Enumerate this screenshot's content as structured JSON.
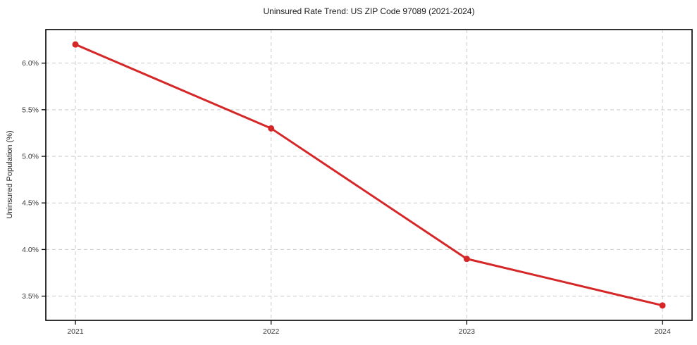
{
  "chart_data": {
    "type": "line",
    "title": "Uninsured Rate Trend: US ZIP Code 97089 (2021-2024)",
    "xlabel": "",
    "ylabel": "Uninsured Population (%)",
    "categories": [
      "2021",
      "2022",
      "2023",
      "2024"
    ],
    "series": [
      {
        "name": "Uninsured Rate",
        "values": [
          6.2,
          5.3,
          3.9,
          3.4
        ]
      }
    ],
    "yticks": [
      3.5,
      4.0,
      4.5,
      5.0,
      5.5,
      6.0
    ],
    "ytick_labels": [
      "3.5%",
      "4.0%",
      "4.5%",
      "5.0%",
      "5.5%",
      "6.0%"
    ],
    "ylim": [
      3.24,
      6.36
    ],
    "grid": true,
    "legend_position": "none",
    "line_color": "#d62728",
    "marker": "circle",
    "grid_color": "#c9c9c9",
    "spine_color": "#000000",
    "tick_label_color": "#3a3a3a"
  }
}
